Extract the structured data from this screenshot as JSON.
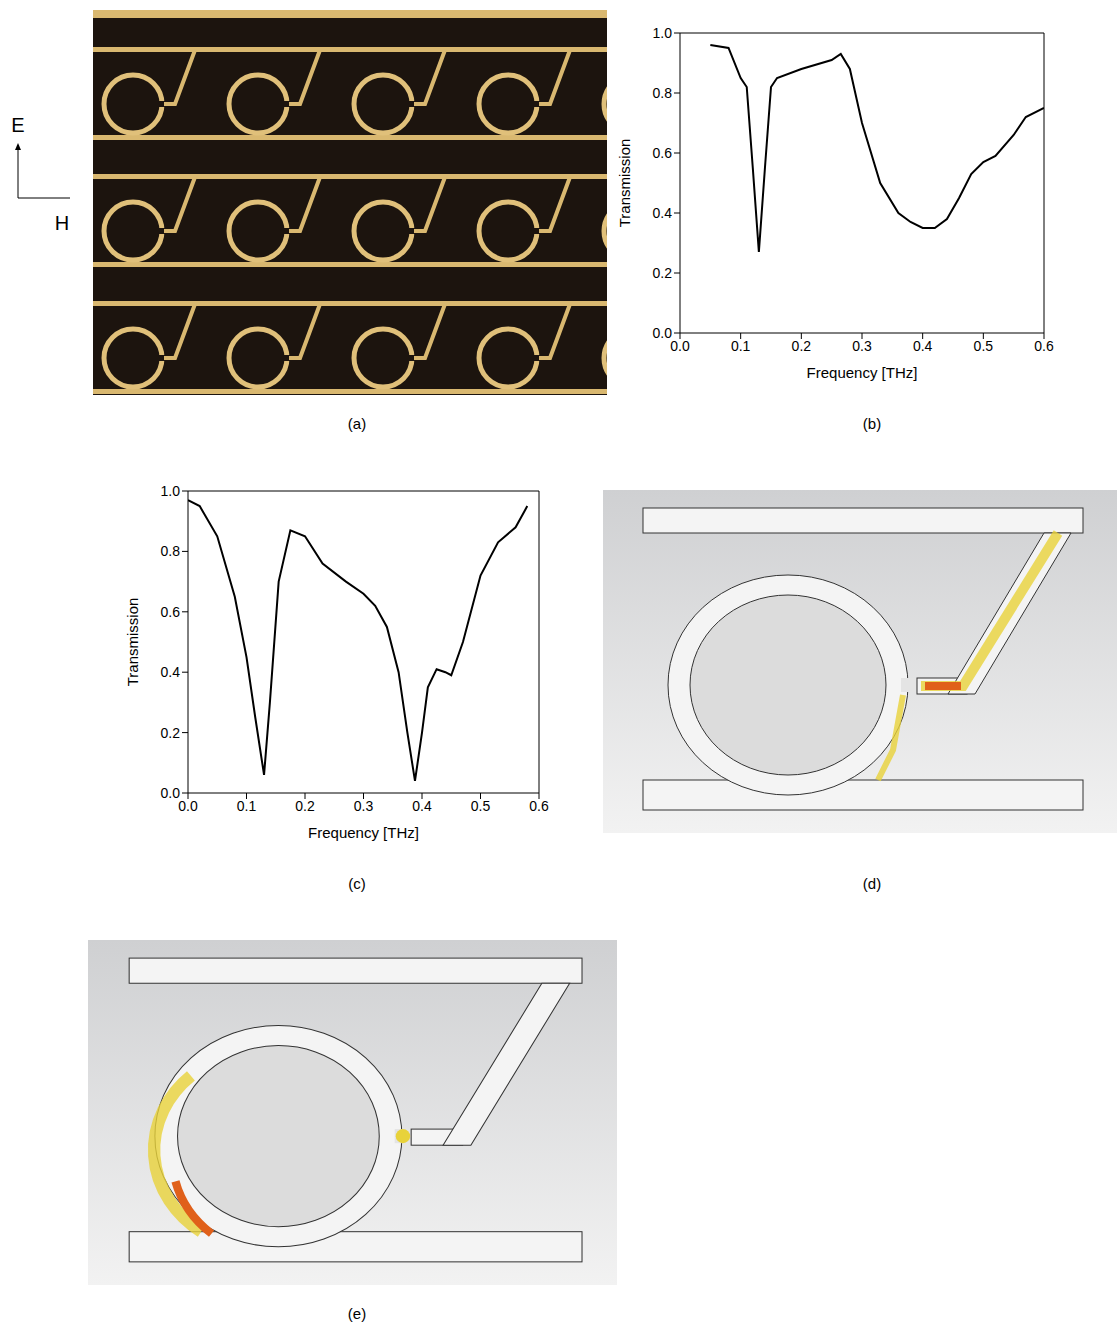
{
  "figure": {
    "panel_labels": {
      "a": "(a)",
      "b": "(b)",
      "c": "(c)",
      "d": "(d)",
      "e": "(e)"
    },
    "field_labels": {
      "vertical": "E",
      "horizontal": "H"
    }
  },
  "chart_data": [
    {
      "type": "line",
      "panel": "b",
      "x_label": "Frequency [THz]",
      "y_label": "Transmission",
      "color": "#000000",
      "grid": false,
      "xlim": [
        0,
        0.6
      ],
      "ylim": [
        0,
        1
      ],
      "xticks": [
        {
          "value": 0,
          "label": "0.0"
        },
        0.1,
        0.2,
        0.3,
        0.4,
        0.5,
        0.6
      ],
      "yticks": [
        {
          "value": 0,
          "label": "0.0"
        },
        0.2,
        0.4,
        0.6,
        0.8,
        {
          "value": 1,
          "label": "1.0"
        }
      ],
      "x": [
        0.05,
        0.08,
        0.1,
        0.11,
        0.12,
        0.13,
        0.14,
        0.15,
        0.16,
        0.2,
        0.25,
        0.265,
        0.28,
        0.3,
        0.33,
        0.36,
        0.38,
        0.4,
        0.42,
        0.44,
        0.46,
        0.48,
        0.5,
        0.52,
        0.55,
        0.57,
        0.6
      ],
      "values": [
        0.96,
        0.95,
        0.85,
        0.82,
        0.55,
        0.27,
        0.55,
        0.82,
        0.85,
        0.88,
        0.91,
        0.93,
        0.88,
        0.7,
        0.5,
        0.4,
        0.37,
        0.35,
        0.35,
        0.38,
        0.45,
        0.53,
        0.57,
        0.59,
        0.66,
        0.72,
        0.75
      ]
    },
    {
      "type": "line",
      "panel": "c",
      "x_label": "Frequency [THz]",
      "y_label": "Transmission",
      "color": "#000000",
      "grid": false,
      "xlim": [
        0,
        0.6
      ],
      "ylim": [
        0,
        1
      ],
      "xticks": [
        {
          "value": 0,
          "label": "0.0"
        },
        0.1,
        0.2,
        0.3,
        0.4,
        0.5,
        0.6
      ],
      "yticks": [
        {
          "value": 0,
          "label": "0.0"
        },
        0.2,
        0.4,
        0.6,
        0.8,
        {
          "value": 1,
          "label": "1.0"
        }
      ],
      "x": [
        0,
        0.02,
        0.05,
        0.08,
        0.1,
        0.115,
        0.13,
        0.14,
        0.155,
        0.175,
        0.2,
        0.23,
        0.27,
        0.3,
        0.32,
        0.34,
        0.36,
        0.375,
        0.388,
        0.4,
        0.41,
        0.425,
        0.44,
        0.45,
        0.47,
        0.5,
        0.53,
        0.56,
        0.58
      ],
      "values": [
        0.97,
        0.95,
        0.85,
        0.65,
        0.45,
        0.25,
        0.06,
        0.3,
        0.7,
        0.87,
        0.85,
        0.76,
        0.7,
        0.66,
        0.62,
        0.55,
        0.4,
        0.2,
        0.04,
        0.2,
        0.35,
        0.41,
        0.4,
        0.39,
        0.5,
        0.72,
        0.83,
        0.88,
        0.95
      ]
    }
  ]
}
